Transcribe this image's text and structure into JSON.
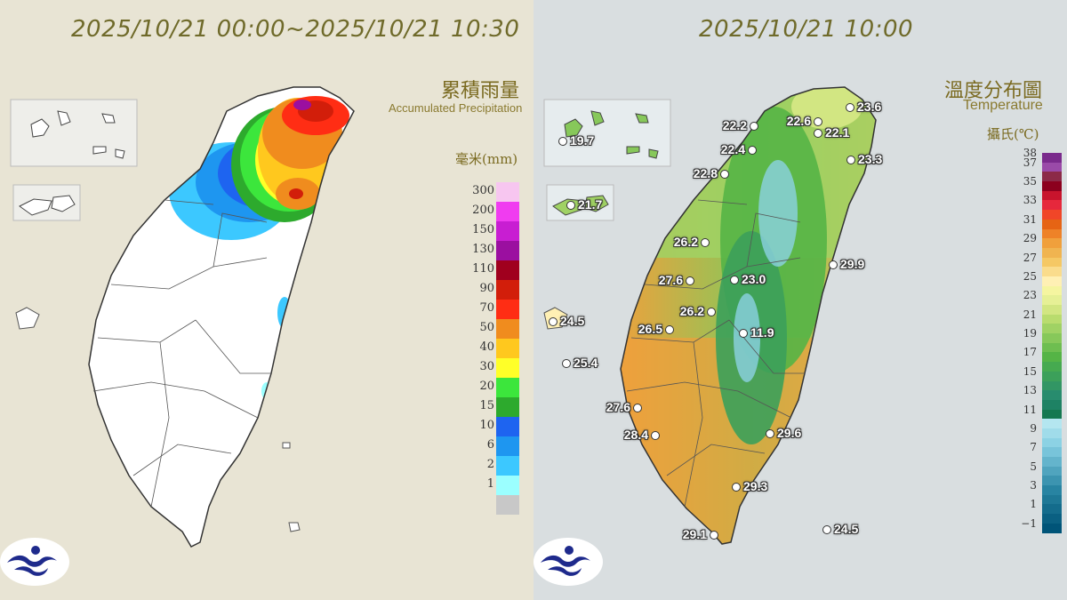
{
  "rain_panel": {
    "title": "2025/10/21 00:00~2025/10/21 10:30",
    "legend_zh": "累積雨量",
    "legend_en": "Accumulated Precipitation",
    "unit": "毫米(mm)",
    "scale": [
      {
        "label": "300",
        "color": "#f7c6f0"
      },
      {
        "label": "200",
        "color": "#f03cf0"
      },
      {
        "label": "150",
        "color": "#c81ed2"
      },
      {
        "label": "130",
        "color": "#9b0fa0"
      },
      {
        "label": "110",
        "color": "#a0001e"
      },
      {
        "label": "90",
        "color": "#d21e0a"
      },
      {
        "label": "70",
        "color": "#ff2d14"
      },
      {
        "label": "50",
        "color": "#f08c1e"
      },
      {
        "label": "40",
        "color": "#ffc81e"
      },
      {
        "label": "30",
        "color": "#ffff28"
      },
      {
        "label": "20",
        "color": "#3ce63c"
      },
      {
        "label": "15",
        "color": "#2daa2d"
      },
      {
        "label": "10",
        "color": "#1e64f0"
      },
      {
        "label": "6",
        "color": "#1e96f0"
      },
      {
        "label": "2",
        "color": "#3cc8ff"
      },
      {
        "label": "1",
        "color": "#9bffff"
      },
      {
        "label": "",
        "color": "#c8c8c8"
      }
    ]
  },
  "temp_panel": {
    "title": "2025/10/21 10:00",
    "legend_zh": "溫度分布圖",
    "legend_en": "Temperature",
    "unit": "攝氏(℃)",
    "scale": [
      {
        "label": "38",
        "color": "#7a2a8c"
      },
      {
        "label": "37",
        "color": "#9a4aa8"
      },
      {
        "label": "",
        "color": "#8c2a48"
      },
      {
        "label": "35",
        "color": "#8c001e"
      },
      {
        "label": "",
        "color": "#c8142d"
      },
      {
        "label": "33",
        "color": "#e6283c"
      },
      {
        "label": "",
        "color": "#f04628"
      },
      {
        "label": "31",
        "color": "#e66414"
      },
      {
        "label": "",
        "color": "#ee8228"
      },
      {
        "label": "29",
        "color": "#f0a03c"
      },
      {
        "label": "",
        "color": "#f0b450"
      },
      {
        "label": "27",
        "color": "#f5c864"
      },
      {
        "label": "",
        "color": "#fadc8c"
      },
      {
        "label": "25",
        "color": "#fff0b4"
      },
      {
        "label": "",
        "color": "#f5f5a0"
      },
      {
        "label": "23",
        "color": "#e6f096"
      },
      {
        "label": "",
        "color": "#d2e682"
      },
      {
        "label": "21",
        "color": "#b9dc6e"
      },
      {
        "label": "",
        "color": "#a0d264"
      },
      {
        "label": "19",
        "color": "#87c85a"
      },
      {
        "label": "",
        "color": "#6ebe50"
      },
      {
        "label": "17",
        "color": "#55b446"
      },
      {
        "label": "",
        "color": "#46aa50"
      },
      {
        "label": "15",
        "color": "#3ca05a"
      },
      {
        "label": "",
        "color": "#329664"
      },
      {
        "label": "13",
        "color": "#288c6e"
      },
      {
        "label": "",
        "color": "#1e8264"
      },
      {
        "label": "11",
        "color": "#147850"
      },
      {
        "label": "",
        "color": "#b4e6f0"
      },
      {
        "label": "9",
        "color": "#a0dcea"
      },
      {
        "label": "",
        "color": "#8cd2e4"
      },
      {
        "label": "7",
        "color": "#78c4da"
      },
      {
        "label": "",
        "color": "#64b4cc"
      },
      {
        "label": "5",
        "color": "#50a4be"
      },
      {
        "label": "",
        "color": "#3c94b0"
      },
      {
        "label": "3",
        "color": "#2884a2"
      },
      {
        "label": "",
        "color": "#1e7896"
      },
      {
        "label": "1",
        "color": "#146c8c"
      },
      {
        "label": "",
        "color": "#0a6082"
      },
      {
        "label": "−1",
        "color": "#005478"
      }
    ],
    "stations": [
      {
        "value": "22.2"
      },
      {
        "value": "22.6"
      },
      {
        "value": "23.6"
      },
      {
        "value": "22.1"
      },
      {
        "value": "22.4"
      },
      {
        "value": "23.3"
      },
      {
        "value": "22.8"
      },
      {
        "value": "19.7"
      },
      {
        "value": "21.7"
      },
      {
        "value": "26.2"
      },
      {
        "value": "29.9"
      },
      {
        "value": "23.0"
      },
      {
        "value": "27.6"
      },
      {
        "value": "26.2"
      },
      {
        "value": "24.5"
      },
      {
        "value": "11.9"
      },
      {
        "value": "26.5"
      },
      {
        "value": "25.4"
      },
      {
        "value": "27.6"
      },
      {
        "value": "29.6"
      },
      {
        "value": "28.4"
      },
      {
        "value": "29.3"
      },
      {
        "value": "29.1"
      },
      {
        "value": "24.5"
      }
    ]
  },
  "colors": {
    "title": "#6f6a2a",
    "logo": "#1e2a8c"
  },
  "icons": [
    "cwa-logo-icon"
  ]
}
